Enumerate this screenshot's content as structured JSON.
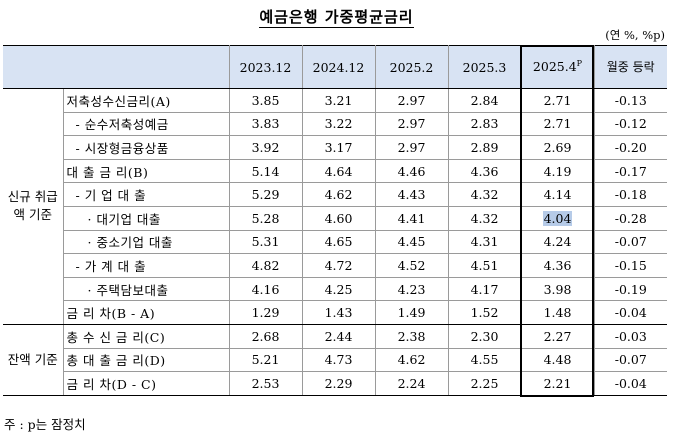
{
  "title": "예금은행 가중평균금리",
  "unit": "(연 %, %p)",
  "columns": [
    "2023.12",
    "2024.12",
    "2025.2",
    "2025.3",
    "2025.4",
    "월중 등락"
  ],
  "col5_sup": "P",
  "groups": [
    {
      "label": "신규 취급액 기준",
      "rows": [
        {
          "label": "저축성수신금리(A)",
          "indent": 0,
          "values": [
            "3.85",
            "3.21",
            "2.97",
            "2.84",
            "2.71",
            "-0.13"
          ]
        },
        {
          "label": "- 순수저축성예금",
          "indent": 1,
          "values": [
            "3.83",
            "3.22",
            "2.97",
            "2.83",
            "2.71",
            "-0.12"
          ]
        },
        {
          "label": "- 시장형금융상품",
          "indent": 1,
          "values": [
            "3.92",
            "3.17",
            "2.97",
            "2.89",
            "2.69",
            "-0.20"
          ]
        },
        {
          "label": "대 출 금 리(B)",
          "indent": 0,
          "values": [
            "5.14",
            "4.64",
            "4.46",
            "4.36",
            "4.19",
            "-0.17"
          ]
        },
        {
          "label": "- 기 업 대 출",
          "indent": 1,
          "values": [
            "5.29",
            "4.62",
            "4.43",
            "4.32",
            "4.14",
            "-0.18"
          ]
        },
        {
          "label": "· 대기업 대출",
          "indent": 2,
          "values": [
            "5.28",
            "4.60",
            "4.41",
            "4.32",
            "4.04",
            "-0.28"
          ],
          "highlight": 4
        },
        {
          "label": "· 중소기업 대출",
          "indent": 2,
          "values": [
            "5.31",
            "4.65",
            "4.45",
            "4.31",
            "4.24",
            "-0.07"
          ]
        },
        {
          "label": "- 가 계 대 출",
          "indent": 1,
          "values": [
            "4.82",
            "4.72",
            "4.52",
            "4.51",
            "4.36",
            "-0.15"
          ]
        },
        {
          "label": "· 주택담보대출",
          "indent": 2,
          "values": [
            "4.16",
            "4.25",
            "4.23",
            "4.17",
            "3.98",
            "-0.19"
          ]
        },
        {
          "label": "금 리 차(B - A)",
          "indent": 0,
          "values": [
            "1.29",
            "1.43",
            "1.49",
            "1.52",
            "1.48",
            "-0.04"
          ]
        }
      ]
    },
    {
      "label": "잔액 기준",
      "rows": [
        {
          "label": "총 수 신 금 리(C)",
          "indent": 0,
          "values": [
            "2.68",
            "2.44",
            "2.38",
            "2.30",
            "2.27",
            "-0.03"
          ]
        },
        {
          "label": "총 대 출 금 리(D)",
          "indent": 0,
          "values": [
            "5.21",
            "4.73",
            "4.62",
            "4.55",
            "4.48",
            "-0.07"
          ]
        },
        {
          "label": "금 리 차(D - C)",
          "indent": 0,
          "values": [
            "2.53",
            "2.29",
            "2.24",
            "2.25",
            "2.21",
            "-0.04"
          ]
        }
      ]
    }
  ],
  "note": "주 : p는 잠정치"
}
